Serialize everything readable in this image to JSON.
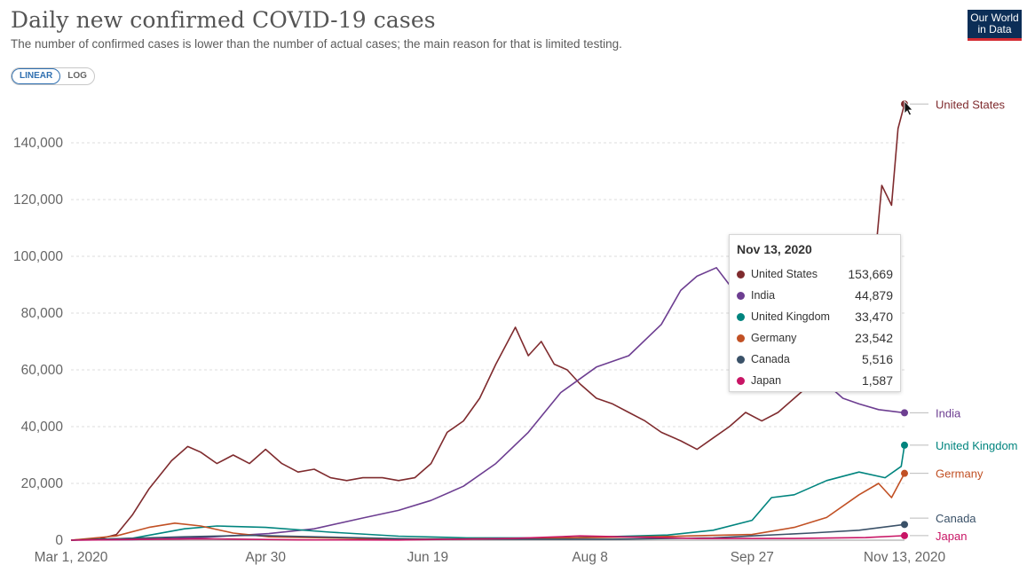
{
  "header": {
    "title": "Daily new confirmed COVID-19 cases",
    "subtitle": "The number of confirmed cases is lower than the number of actual cases; the main reason for that is limited testing."
  },
  "logo": {
    "line1": "Our World",
    "line2": "in Data"
  },
  "scale_toggle": {
    "linear_label": "LINEAR",
    "log_label": "LOG",
    "selected": "LINEAR"
  },
  "tooltip": {
    "date": "Nov 13, 2020",
    "rows": [
      {
        "name": "United States",
        "value": "153,669",
        "color": "#7f2b2e"
      },
      {
        "name": "India",
        "value": "44,879",
        "color": "#6d3e91"
      },
      {
        "name": "United Kingdom",
        "value": "33,470",
        "color": "#00847e"
      },
      {
        "name": "Germany",
        "value": "23,542",
        "color": "#c15024"
      },
      {
        "name": "Canada",
        "value": "5,516",
        "color": "#3a5168"
      },
      {
        "name": "Japan",
        "value": "1,587",
        "color": "#c81565"
      }
    ]
  },
  "chart_data": {
    "type": "line",
    "scale": "linear",
    "ylim": [
      0,
      155000
    ],
    "yticks": [
      0,
      20000,
      40000,
      60000,
      80000,
      100000,
      120000,
      140000
    ],
    "ytick_labels": [
      "0",
      "20,000",
      "40,000",
      "60,000",
      "80,000",
      "100,000",
      "120,000",
      "140,000"
    ],
    "xlim": [
      "2020-03-01",
      "2020-11-13"
    ],
    "xticks": [
      "2020-03-01",
      "2020-04-30",
      "2020-06-19",
      "2020-08-08",
      "2020-09-27",
      "2020-11-13"
    ],
    "xtick_labels": [
      "Mar 1, 2020",
      "Apr 30",
      "Jun 19",
      "Aug 8",
      "Sep 27",
      "Nov 13, 2020"
    ],
    "grid": "horizontal dashed",
    "legend": "labels at line ends, right",
    "series": [
      {
        "name": "United States",
        "color": "#7f2b2e",
        "x": [
          "2020-03-01",
          "2020-03-10",
          "2020-03-15",
          "2020-03-20",
          "2020-03-25",
          "2020-04-01",
          "2020-04-06",
          "2020-04-10",
          "2020-04-15",
          "2020-04-20",
          "2020-04-25",
          "2020-04-30",
          "2020-05-05",
          "2020-05-10",
          "2020-05-15",
          "2020-05-20",
          "2020-05-25",
          "2020-05-30",
          "2020-06-05",
          "2020-06-10",
          "2020-06-15",
          "2020-06-20",
          "2020-06-25",
          "2020-06-30",
          "2020-07-05",
          "2020-07-10",
          "2020-07-16",
          "2020-07-20",
          "2020-07-24",
          "2020-07-28",
          "2020-08-01",
          "2020-08-05",
          "2020-08-10",
          "2020-08-15",
          "2020-08-20",
          "2020-08-25",
          "2020-08-30",
          "2020-09-05",
          "2020-09-10",
          "2020-09-15",
          "2020-09-20",
          "2020-09-25",
          "2020-09-30",
          "2020-10-05",
          "2020-10-10",
          "2020-10-15",
          "2020-10-20",
          "2020-10-25",
          "2020-10-30",
          "2020-11-04",
          "2020-11-06",
          "2020-11-09",
          "2020-11-11",
          "2020-11-13"
        ],
        "y": [
          30,
          500,
          2000,
          9000,
          18000,
          28000,
          33000,
          31000,
          27000,
          30000,
          27000,
          32000,
          27000,
          24000,
          25000,
          22000,
          21000,
          22000,
          22000,
          21000,
          22000,
          27000,
          38000,
          42000,
          50000,
          62000,
          75000,
          65000,
          70000,
          62000,
          60000,
          55000,
          50000,
          48000,
          45000,
          42000,
          38000,
          35000,
          32000,
          36000,
          40000,
          45000,
          42000,
          45000,
          50000,
          55000,
          60000,
          70000,
          85000,
          100000,
          125000,
          118000,
          145000,
          153669
        ]
      },
      {
        "name": "India",
        "color": "#6d3e91",
        "x": [
          "2020-03-01",
          "2020-03-20",
          "2020-04-10",
          "2020-05-01",
          "2020-05-15",
          "2020-05-30",
          "2020-06-10",
          "2020-06-20",
          "2020-06-30",
          "2020-07-10",
          "2020-07-20",
          "2020-07-30",
          "2020-08-10",
          "2020-08-20",
          "2020-08-30",
          "2020-09-05",
          "2020-09-10",
          "2020-09-16",
          "2020-09-20",
          "2020-09-25",
          "2020-10-01",
          "2020-10-05",
          "2020-10-10",
          "2020-10-15",
          "2020-10-20",
          "2020-10-25",
          "2020-10-30",
          "2020-11-05",
          "2020-11-13"
        ],
        "y": [
          5,
          200,
          900,
          2300,
          4000,
          7800,
          10500,
          14000,
          19000,
          27000,
          38000,
          52000,
          61000,
          65000,
          76000,
          88000,
          93000,
          96000,
          90000,
          85000,
          80000,
          75000,
          70000,
          64000,
          55000,
          50000,
          48000,
          46000,
          44879
        ]
      },
      {
        "name": "United Kingdom",
        "color": "#00847e",
        "x": [
          "2020-03-01",
          "2020-03-20",
          "2020-04-05",
          "2020-04-15",
          "2020-04-30",
          "2020-05-20",
          "2020-06-10",
          "2020-07-01",
          "2020-08-01",
          "2020-09-01",
          "2020-09-15",
          "2020-09-27",
          "2020-10-03",
          "2020-10-10",
          "2020-10-20",
          "2020-10-30",
          "2020-11-07",
          "2020-11-12",
          "2020-11-13"
        ],
        "y": [
          15,
          700,
          4000,
          5000,
          4500,
          2800,
          1400,
          800,
          800,
          1800,
          3500,
          7000,
          15000,
          16000,
          21000,
          24000,
          22000,
          26000,
          33470
        ]
      },
      {
        "name": "Germany",
        "color": "#c15024",
        "x": [
          "2020-03-01",
          "2020-03-15",
          "2020-03-25",
          "2020-04-02",
          "2020-04-10",
          "2020-04-20",
          "2020-05-01",
          "2020-06-01",
          "2020-07-01",
          "2020-08-01",
          "2020-09-01",
          "2020-09-27",
          "2020-10-10",
          "2020-10-20",
          "2020-10-30",
          "2020-11-05",
          "2020-11-09",
          "2020-11-13"
        ],
        "y": [
          10,
          1500,
          4500,
          6000,
          5000,
          2500,
          1200,
          500,
          400,
          800,
          1300,
          2000,
          4500,
          8000,
          16000,
          20000,
          15000,
          23542
        ]
      },
      {
        "name": "Canada",
        "color": "#3a5168",
        "x": [
          "2020-03-01",
          "2020-04-05",
          "2020-04-25",
          "2020-05-15",
          "2020-06-15",
          "2020-07-15",
          "2020-08-15",
          "2020-09-15",
          "2020-09-27",
          "2020-10-15",
          "2020-10-30",
          "2020-11-13"
        ],
        "y": [
          5,
          1200,
          1700,
          1200,
          400,
          300,
          350,
          800,
          1500,
          2500,
          3500,
          5516
        ]
      },
      {
        "name": "Japan",
        "color": "#c81565",
        "x": [
          "2020-03-01",
          "2020-04-10",
          "2020-05-10",
          "2020-06-10",
          "2020-07-15",
          "2020-08-05",
          "2020-09-10",
          "2020-10-10",
          "2020-11-01",
          "2020-11-13"
        ],
        "y": [
          10,
          500,
          100,
          50,
          600,
          1500,
          600,
          600,
          900,
          1587
        ]
      }
    ]
  }
}
